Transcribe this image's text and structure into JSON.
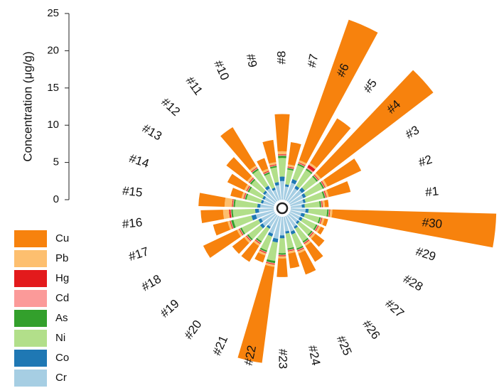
{
  "chart_data": {
    "type": "polar_stacked_bar",
    "y_label": "Concentration (μg/g)",
    "ylim": [
      0,
      25
    ],
    "yticks": [
      0,
      5,
      10,
      15,
      20,
      25
    ],
    "categories": [
      "#1",
      "#2",
      "#3",
      "#4",
      "#5",
      "#6",
      "#7",
      "#8",
      "#9",
      "#10",
      "#11",
      "#12",
      "#13",
      "#14",
      "#15",
      "#16",
      "#17",
      "#18",
      "#19",
      "#20",
      "#21",
      "#22",
      "#23",
      "#24",
      "#25",
      "#26",
      "#27",
      "#28",
      "#29",
      "#30"
    ],
    "series": [
      {
        "name": "Cr",
        "color": "#a6cee3",
        "values": [
          1.5,
          1.8,
          2.0,
          2.2,
          2.0,
          2.5,
          1.8,
          2.5,
          2.0,
          1.5,
          2.0,
          1.8,
          1.5,
          1.5,
          1.8,
          2.0,
          2.5,
          2.0,
          2.2,
          1.8,
          2.5,
          3.0,
          2.5,
          2.0,
          2.2,
          1.8,
          1.5,
          1.5,
          1.5,
          2.0
        ]
      },
      {
        "name": "Co",
        "color": "#1f78b4",
        "values": [
          0.4,
          0.3,
          0.4,
          0.5,
          0.4,
          0.5,
          0.3,
          0.6,
          0.4,
          0.3,
          0.4,
          0.3,
          0.3,
          0.3,
          0.4,
          0.5,
          0.6,
          0.4,
          0.4,
          0.3,
          0.4,
          0.5,
          0.4,
          0.3,
          0.4,
          0.3,
          0.3,
          0.4,
          0.5,
          0.4
        ]
      },
      {
        "name": "Ni",
        "color": "#b2df8a",
        "values": [
          2.0,
          2.5,
          2.5,
          2.0,
          2.5,
          2.0,
          2.0,
          2.5,
          2.0,
          2.0,
          2.5,
          2.0,
          2.0,
          2.0,
          3.0,
          3.0,
          2.5,
          2.5,
          2.0,
          2.0,
          2.0,
          2.5,
          2.0,
          2.0,
          2.0,
          2.0,
          2.0,
          2.0,
          2.0,
          2.5
        ]
      },
      {
        "name": "As",
        "color": "#33a02c",
        "values": [
          0.2,
          0.2,
          0.2,
          0.2,
          0.2,
          0.2,
          0.2,
          0.3,
          0.2,
          0.2,
          0.2,
          0.2,
          0.2,
          0.2,
          0.2,
          0.2,
          0.3,
          0.2,
          0.2,
          0.2,
          0.2,
          0.3,
          0.2,
          0.2,
          0.2,
          0.2,
          0.2,
          0.2,
          0.2,
          0.2
        ]
      },
      {
        "name": "Cd",
        "color": "#fb9a99",
        "values": [
          0.1,
          0.1,
          0.1,
          0.1,
          0.2,
          0.1,
          0.1,
          0.1,
          0.1,
          0.1,
          0.1,
          0.1,
          0.1,
          0.1,
          0.1,
          0.1,
          0.1,
          0.1,
          0.1,
          0.1,
          0.1,
          0.1,
          0.1,
          0.1,
          0.1,
          0.1,
          0.1,
          0.1,
          0.1,
          0.1
        ]
      },
      {
        "name": "Hg",
        "color": "#e31a1c",
        "values": [
          0.1,
          0.1,
          0.1,
          0.1,
          0.4,
          0.1,
          0.1,
          0.1,
          0.1,
          0.1,
          0.1,
          0.1,
          0.1,
          0.1,
          0.1,
          0.2,
          0.1,
          0.1,
          0.1,
          0.1,
          0.1,
          0.1,
          0.1,
          0.1,
          0.1,
          0.1,
          0.1,
          0.1,
          0.1,
          0.1
        ]
      },
      {
        "name": "Pb",
        "color": "#fdbf6f",
        "values": [
          0.3,
          0.3,
          0.3,
          0.3,
          0.3,
          0.3,
          0.3,
          0.4,
          0.3,
          0.3,
          0.3,
          0.3,
          0.3,
          0.3,
          1.0,
          0.8,
          0.3,
          0.3,
          0.3,
          0.3,
          0.3,
          0.3,
          0.3,
          0.3,
          0.3,
          0.3,
          0.3,
          0.3,
          0.3,
          0.3
        ]
      },
      {
        "name": "Cu",
        "color": "#f7820d",
        "values": [
          0.5,
          3.0,
          5.0,
          19.0,
          7.0,
          20.0,
          3.0,
          5.0,
          3.0,
          1.5,
          6.0,
          3.5,
          2.5,
          1.5,
          3.5,
          3.0,
          2.0,
          5.0,
          2.0,
          2.5,
          1.0,
          13.0,
          2.5,
          2.0,
          3.0,
          2.5,
          1.5,
          0.5,
          0.5,
          22.0
        ]
      }
    ]
  }
}
